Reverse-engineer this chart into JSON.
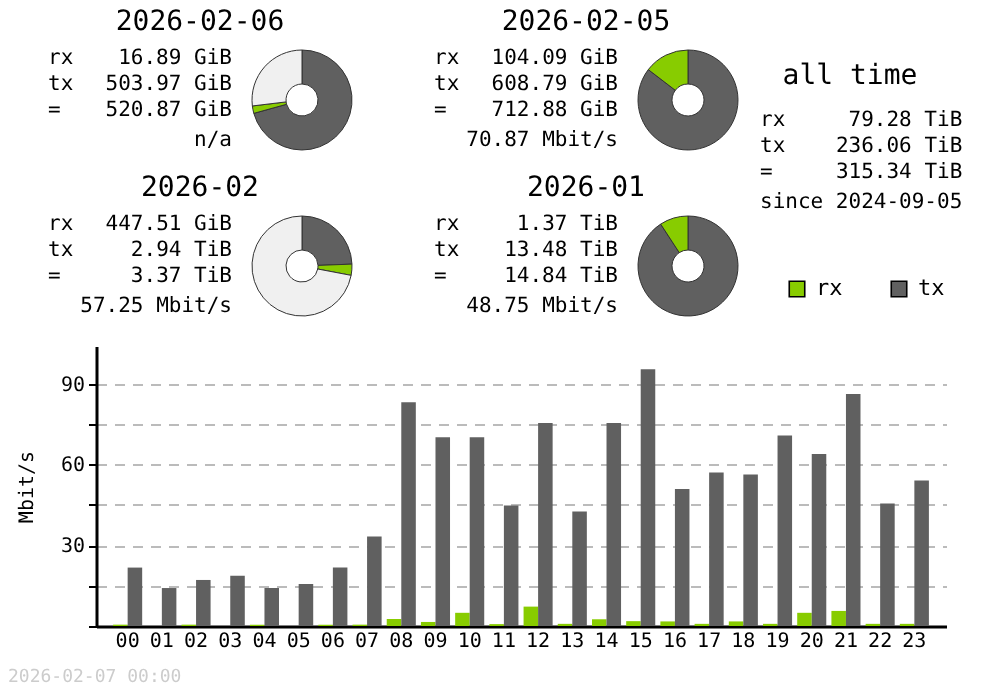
{
  "chart_data": [
    {
      "type": "donut",
      "title": "2026-02-06",
      "categories": [
        null,
        null,
        null
      ],
      "values": [
        70.7,
        2.4,
        26.9
      ],
      "colors": [
        "#606060",
        "#88cc00",
        "#f0f0f0"
      ],
      "annotations": [
        "rx",
        "16.89 GiB",
        "tx",
        "503.97 GiB",
        "=",
        "520.87 GiB",
        "n/a"
      ]
    },
    {
      "type": "donut",
      "title": "2026-02-05",
      "categories": [
        null,
        null
      ],
      "values": [
        85.4,
        14.6
      ],
      "colors": [
        "#606060",
        "#88cc00"
      ],
      "annotations": [
        "rx",
        "104.09 GiB",
        "tx",
        "608.79 GiB",
        "=",
        "712.88 GiB",
        "70.87 Mbit/s"
      ]
    },
    {
      "type": "other",
      "title": "all time",
      "annotations": [
        "rx",
        "79.28 TiB",
        "tx",
        "236.06 TiB",
        "=",
        "315.34 TiB",
        "since 2024-09-05"
      ]
    },
    {
      "type": "donut",
      "title": "2026-02",
      "categories": [
        null,
        null,
        null
      ],
      "values": [
        24.4,
        3.6,
        72
      ],
      "colors": [
        "#606060",
        "#88cc00",
        "#f0f0f0"
      ],
      "annotations": [
        "rx",
        "447.51 GiB",
        "tx",
        "2.94 TiB",
        "=",
        "3.37 TiB",
        "57.25 Mbit/s"
      ]
    },
    {
      "type": "donut",
      "title": "2026-01",
      "categories": [
        null,
        null
      ],
      "values": [
        90.8,
        9.2
      ],
      "colors": [
        "#606060",
        "#88cc00"
      ],
      "annotations": [
        "rx",
        "1.37 TiB",
        "tx",
        "13.48 TiB",
        "=",
        "14.84 TiB",
        "48.75 Mbit/s"
      ]
    },
    {
      "type": "bar",
      "ylabel": "Mbit/s",
      "categories": [
        "00",
        "01",
        "02",
        "03",
        "04",
        "05",
        "06",
        "07",
        "08",
        "09",
        "10",
        "11",
        "12",
        "13",
        "14",
        "15",
        "16",
        "17",
        "18",
        "19",
        "20",
        "21",
        "22",
        "23"
      ],
      "series": [
        {
          "name": "rx",
          "color": "#88cc00",
          "values": [
            0.5,
            0,
            0.5,
            0,
            0.5,
            0,
            0.5,
            0.5,
            2.6,
            1.5,
            4.9,
            0.7,
            7.2,
            0.8,
            2.5,
            1.8,
            1.7,
            0.8,
            1.7,
            0.8,
            4.9,
            5.6,
            0.8,
            0.8
          ]
        },
        {
          "name": "tx",
          "color": "#606060",
          "values": [
            21.7,
            14.1,
            17.1,
            18.7,
            14.1,
            15.6,
            21.7,
            33.2,
            83.1,
            70.1,
            70.1,
            44.8,
            75.4,
            42.5,
            75.4,
            95.4,
            50.9,
            57,
            56.3,
            70.8,
            63.9,
            86.2,
            45.5,
            54
          ]
        }
      ],
      "ylim": [
        0,
        104
      ],
      "yticks": [
        {
          "value": 0,
          "label": null
        },
        {
          "value": 15,
          "label": null
        },
        30,
        {
          "value": 45,
          "label": null
        },
        60,
        {
          "value": 75,
          "label": null
        },
        90
      ],
      "grid": "y",
      "legend": "top right",
      "annotations": [
        "2026-02-07 00:00"
      ]
    }
  ]
}
